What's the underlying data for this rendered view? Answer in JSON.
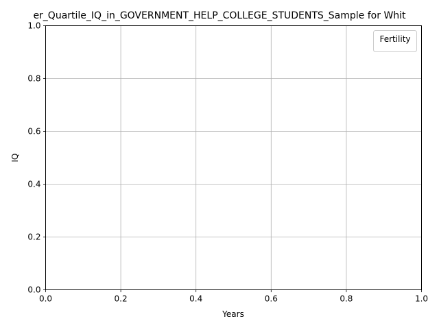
{
  "chart_data": {
    "type": "line",
    "title": "er_Quartile_IQ_in_GOVERNMENT_HELP_COLLEGE_STUDENTS_Sample for Whit",
    "xlabel": "Years",
    "ylabel": "IQ",
    "xlim": [
      0.0,
      1.0
    ],
    "ylim": [
      0.0,
      1.0
    ],
    "x_ticks": [
      "0.0",
      "0.2",
      "0.4",
      "0.6",
      "0.8",
      "1.0"
    ],
    "y_ticks": [
      "0.0",
      "0.2",
      "0.4",
      "0.6",
      "0.8",
      "1.0"
    ],
    "grid": true,
    "legend": {
      "title": "Fertility",
      "placement": "top-right",
      "entries": []
    },
    "series": []
  }
}
